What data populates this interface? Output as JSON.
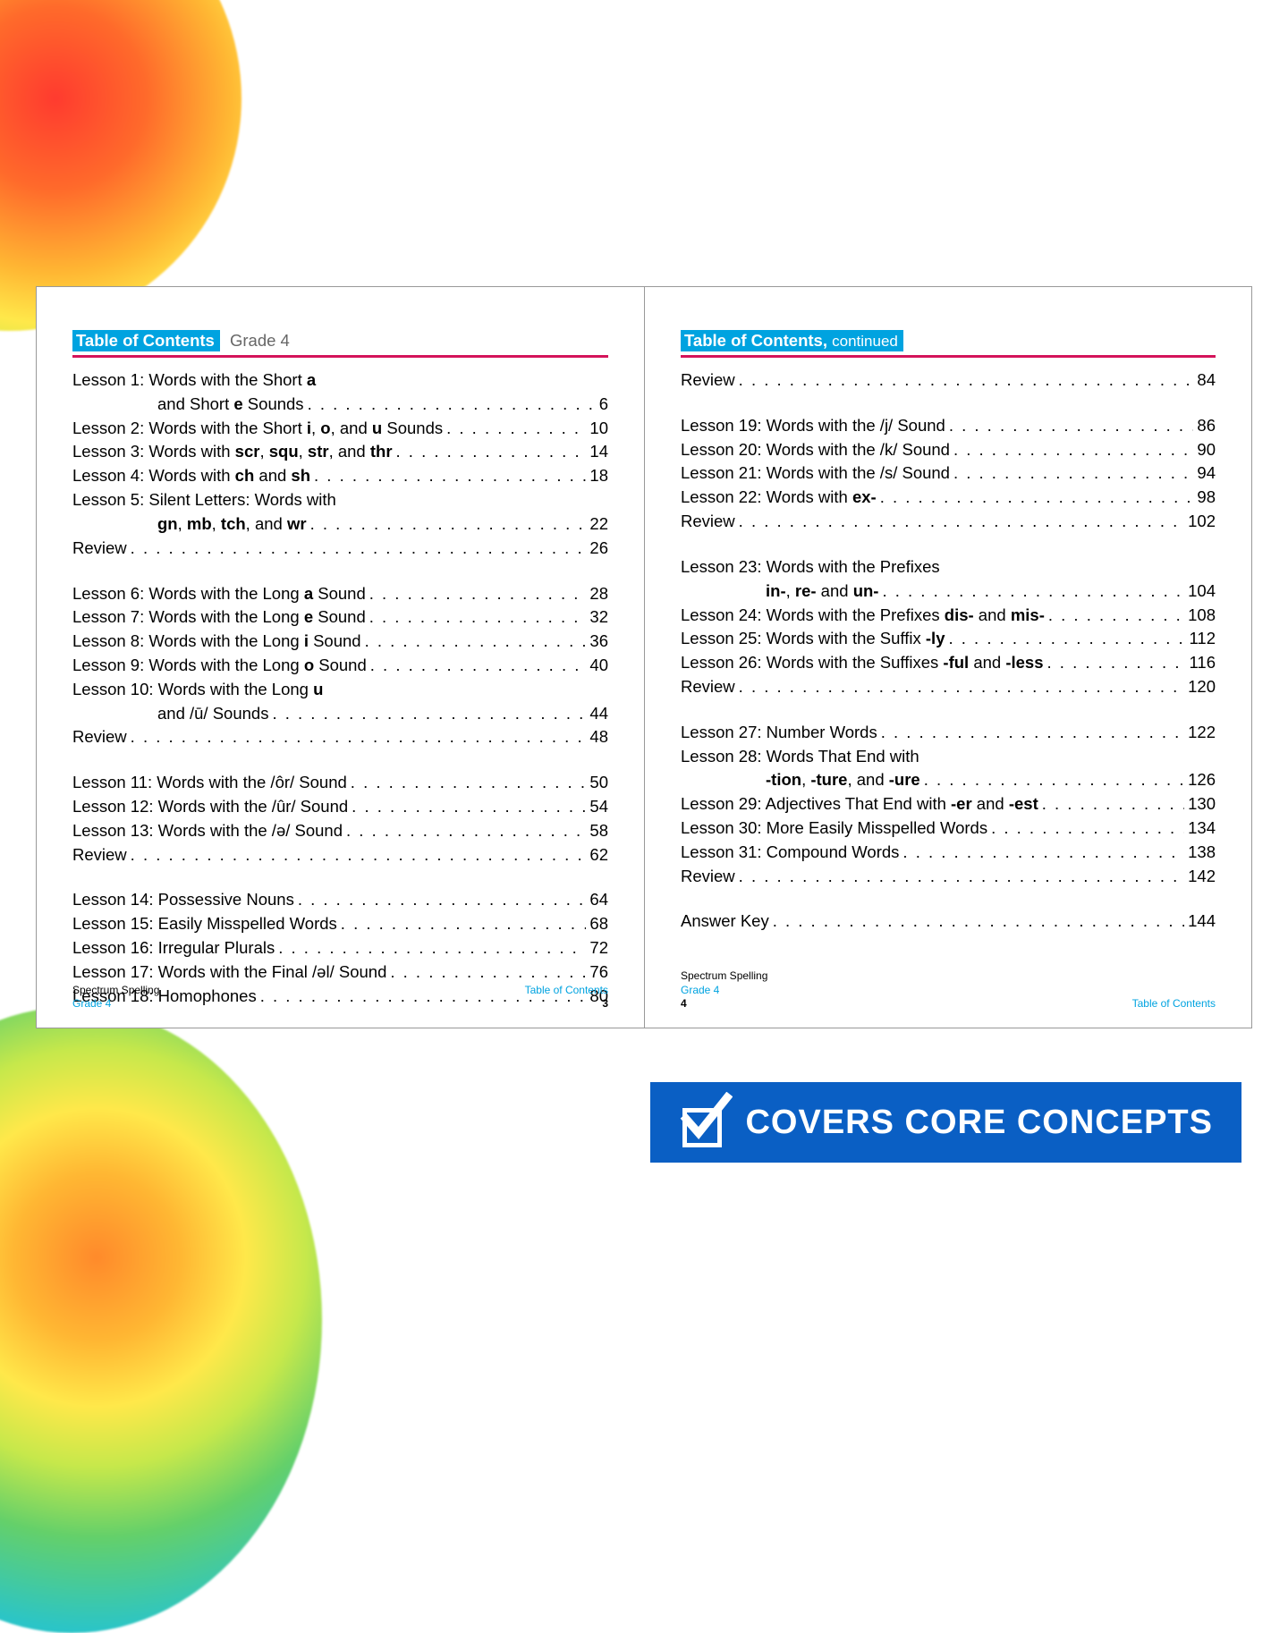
{
  "colors": {
    "badge_bg": "#00a3e0",
    "rule": "#d4145a",
    "banner_bg": "#0a5fc4",
    "text": "#000000",
    "accent": "#00a3e0"
  },
  "header_left": {
    "badge": "Table of Contents",
    "grade": "Grade 4"
  },
  "header_right": {
    "badge": "Table of Contents,",
    "cont": "continued"
  },
  "left_blocks": [
    [
      {
        "text": "Lesson 1: Words with the Short <b>a</b>",
        "cont": true
      },
      {
        "text": "and Short <b>e</b> Sounds",
        "page": "6",
        "indent": true
      },
      {
        "text": "Lesson 2: Words with the Short <b>i</b>, <b>o</b>, and <b>u</b> Sounds",
        "page": "10"
      },
      {
        "text": "Lesson 3: Words with <b>scr</b>, <b>squ</b>, <b>str</b>, and <b>thr</b>",
        "page": "14"
      },
      {
        "text": "Lesson 4: Words with <b>ch</b> and <b>sh</b>",
        "page": "18"
      },
      {
        "text": "Lesson 5: Silent Letters: Words with",
        "cont": true
      },
      {
        "text": "<b>gn</b>, <b>mb</b>, <b>tch</b>, and <b>wr</b>",
        "page": "22",
        "indent": true
      },
      {
        "text": "Review",
        "page": "26"
      }
    ],
    [
      {
        "text": "Lesson 6: Words with the Long <b>a</b> Sound",
        "page": "28"
      },
      {
        "text": "Lesson 7: Words with the Long <b>e</b> Sound",
        "page": "32"
      },
      {
        "text": "Lesson 8: Words with the Long <b>i</b> Sound",
        "page": "36"
      },
      {
        "text": "Lesson 9: Words with the Long <b>o</b> Sound",
        "page": "40"
      },
      {
        "text": "Lesson 10: Words with the Long <b>u</b>",
        "cont": true
      },
      {
        "text": "and /ū/ Sounds",
        "page": "44",
        "indent": true
      },
      {
        "text": "Review",
        "page": "48"
      }
    ],
    [
      {
        "text": "Lesson 11: Words with the /ôr/ Sound",
        "page": "50"
      },
      {
        "text": "Lesson 12: Words with the /ûr/ Sound",
        "page": "54"
      },
      {
        "text": "Lesson 13: Words with the /ə/ Sound",
        "page": "58"
      },
      {
        "text": "Review",
        "page": "62"
      }
    ],
    [
      {
        "text": "Lesson 14: Possessive Nouns",
        "page": "64"
      },
      {
        "text": "Lesson 15: Easily Misspelled Words",
        "page": "68"
      },
      {
        "text": "Lesson 16: Irregular Plurals",
        "page": "72"
      },
      {
        "text": "Lesson 17: Words with the Final /əl/ Sound",
        "page": "76"
      },
      {
        "text": "Lesson 18: Homophones",
        "page": "80"
      }
    ]
  ],
  "right_blocks": [
    [
      {
        "text": "Review",
        "page": "84"
      }
    ],
    [
      {
        "text": "Lesson 19: Words with the /j/ Sound",
        "page": "86"
      },
      {
        "text": "Lesson 20: Words with the /k/ Sound",
        "page": "90"
      },
      {
        "text": "Lesson 21: Words with the /s/ Sound",
        "page": "94"
      },
      {
        "text": "Lesson 22: Words with <b>ex-</b>",
        "page": "98"
      },
      {
        "text": "Review",
        "page": "102"
      }
    ],
    [
      {
        "text": "Lesson 23: Words with the Prefixes",
        "cont": true
      },
      {
        "text": "<b>in-</b>, <b>re-</b> and <b>un-</b>",
        "page": "104",
        "indent": true
      },
      {
        "text": "Lesson 24: Words with the Prefixes <b>dis-</b> and <b>mis-</b>",
        "page": "108"
      },
      {
        "text": "Lesson 25: Words with the Suffix <b>-ly</b>",
        "page": "112"
      },
      {
        "text": "Lesson 26: Words with the Suffixes <b>-ful</b> and <b>-less</b>",
        "page": "116"
      },
      {
        "text": "Review",
        "page": "120"
      }
    ],
    [
      {
        "text": "Lesson 27: Number Words",
        "page": "122"
      },
      {
        "text": "Lesson 28: Words That End with",
        "cont": true
      },
      {
        "text": "<b>-tion</b>, <b>-ture</b>, and <b>-ure</b>",
        "page": "126",
        "indent": true
      },
      {
        "text": "Lesson 29: Adjectives That End with <b>-er</b> and <b>-est</b>",
        "page": "130"
      },
      {
        "text": "Lesson 30: More Easily Misspelled Words",
        "page": "134"
      },
      {
        "text": "Lesson 31: Compound Words",
        "page": "138"
      },
      {
        "text": "Review",
        "page": "142"
      }
    ],
    [
      {
        "text": "Answer Key",
        "page": "144"
      }
    ]
  ],
  "footer": {
    "book": "Spectrum Spelling",
    "grade": "Grade 4",
    "label": "Table of Contents",
    "page_left": "3",
    "page_right": "4"
  },
  "banner": {
    "label": "COVERS CORE CONCEPTS"
  }
}
